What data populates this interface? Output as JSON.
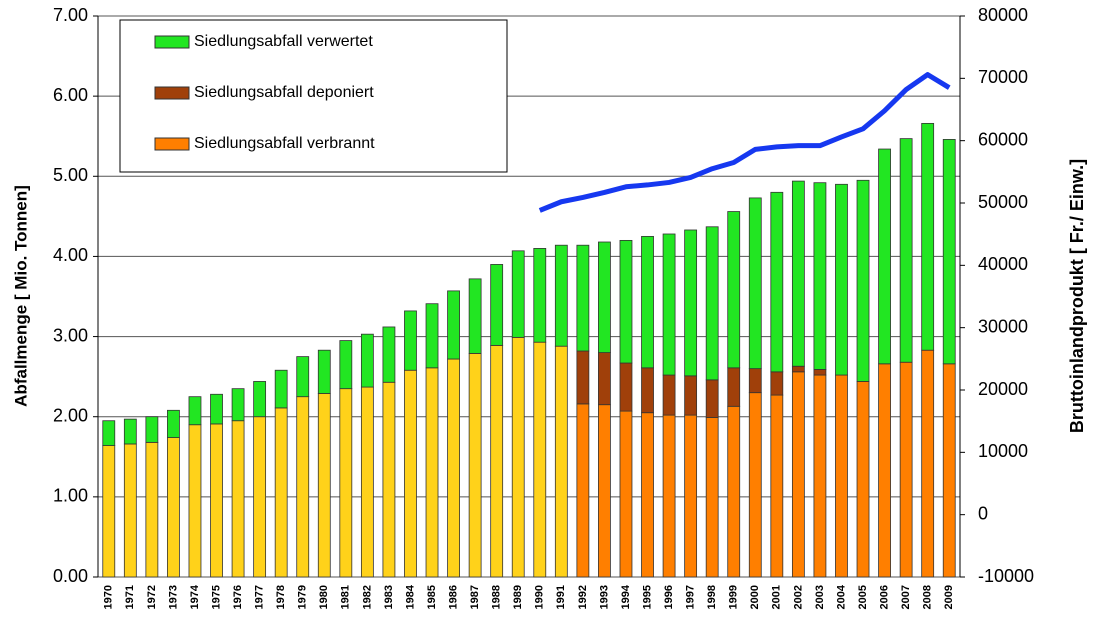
{
  "chart_data": {
    "type": "bar",
    "stacked": true,
    "categories": [
      "1970",
      "1971",
      "1972",
      "1973",
      "1974",
      "1975",
      "1976",
      "1977",
      "1978",
      "1979",
      "1980",
      "1981",
      "1982",
      "1983",
      "1984",
      "1985",
      "1986",
      "1987",
      "1988",
      "1989",
      "1990",
      "1991",
      "1992",
      "1993",
      "1994",
      "1995",
      "1996",
      "1997",
      "1998",
      "1999",
      "2000",
      "2001",
      "2002",
      "2003",
      "2004",
      "2005",
      "2006",
      "2007",
      "2008",
      "2009"
    ],
    "ylabel": "Abfallmenge [ Mio. Tonnen]",
    "y2label": "Bruttoinlandprodukt [ Fr./ Einw.]",
    "ylim": [
      0,
      7
    ],
    "yticks": [
      {
        "value": 0,
        "label": "0.00"
      },
      {
        "value": 1,
        "label": "1.00"
      },
      {
        "value": 2,
        "label": "2.00"
      },
      {
        "value": 3,
        "label": "3.00"
      },
      {
        "value": 4,
        "label": "4.00"
      },
      {
        "value": 5,
        "label": "5.00"
      },
      {
        "value": 6,
        "label": "6.00"
      },
      {
        "value": 7,
        "label": "7.00"
      }
    ],
    "y2lim": [
      -10000,
      80000
    ],
    "y2ticks": [
      -10000,
      0,
      10000,
      20000,
      30000,
      40000,
      50000,
      60000,
      70000,
      80000
    ],
    "grid": true,
    "legend": "upper left",
    "series": [
      {
        "color": "#ffd21a",
        "values": [
          1.64,
          1.66,
          1.68,
          1.74,
          1.9,
          1.91,
          1.95,
          2.0,
          2.11,
          2.25,
          2.29,
          2.35,
          2.37,
          2.43,
          2.58,
          2.61,
          2.72,
          2.79,
          2.89,
          2.99,
          2.93,
          2.88,
          null,
          null,
          null,
          null,
          null,
          null,
          null,
          null,
          null,
          null,
          null,
          null,
          null,
          null,
          null,
          null,
          null,
          null
        ]
      },
      {
        "name": "Siedlungsabfall verbrannt",
        "color": "#ff7f00",
        "values": [
          null,
          null,
          null,
          null,
          null,
          null,
          null,
          null,
          null,
          null,
          null,
          null,
          null,
          null,
          null,
          null,
          null,
          null,
          null,
          null,
          null,
          null,
          2.16,
          2.15,
          2.07,
          2.05,
          2.02,
          2.02,
          1.99,
          2.13,
          2.3,
          2.27,
          2.56,
          2.52,
          2.52,
          2.44,
          2.66,
          2.68,
          2.83,
          2.66
        ]
      },
      {
        "name": "Siedlungsabfall deponiert",
        "color": "#a0400a",
        "values": [
          null,
          null,
          null,
          null,
          null,
          null,
          null,
          null,
          null,
          null,
          null,
          null,
          null,
          null,
          null,
          null,
          null,
          null,
          null,
          null,
          null,
          null,
          0.66,
          0.65,
          0.6,
          0.56,
          0.5,
          0.49,
          0.47,
          0.48,
          0.3,
          0.29,
          0.07,
          0.07,
          0,
          0,
          0,
          0,
          0,
          0
        ]
      },
      {
        "name": "Siedlungsabfall verwertet",
        "color": "#22e622",
        "values": [
          0.31,
          0.31,
          0.32,
          0.34,
          0.35,
          0.37,
          0.4,
          0.44,
          0.47,
          0.5,
          0.54,
          0.6,
          0.66,
          0.69,
          0.74,
          0.8,
          0.85,
          0.93,
          1.01,
          1.08,
          1.17,
          1.26,
          1.32,
          1.38,
          1.53,
          1.64,
          1.76,
          1.82,
          1.91,
          1.95,
          2.13,
          2.24,
          2.31,
          2.33,
          2.38,
          2.51,
          2.68,
          2.79,
          2.83,
          2.8
        ]
      },
      {
        "type": "line",
        "axis": "y2",
        "color": "#1638f0",
        "values": [
          null,
          null,
          null,
          null,
          null,
          null,
          null,
          null,
          null,
          null,
          null,
          null,
          null,
          null,
          null,
          null,
          null,
          null,
          null,
          null,
          48800,
          50200,
          50900,
          51700,
          52600,
          52900,
          53300,
          54100,
          55500,
          56500,
          58600,
          59000,
          59200,
          59200,
          60600,
          61900,
          64800,
          68200,
          70600,
          68500
        ]
      }
    ]
  }
}
